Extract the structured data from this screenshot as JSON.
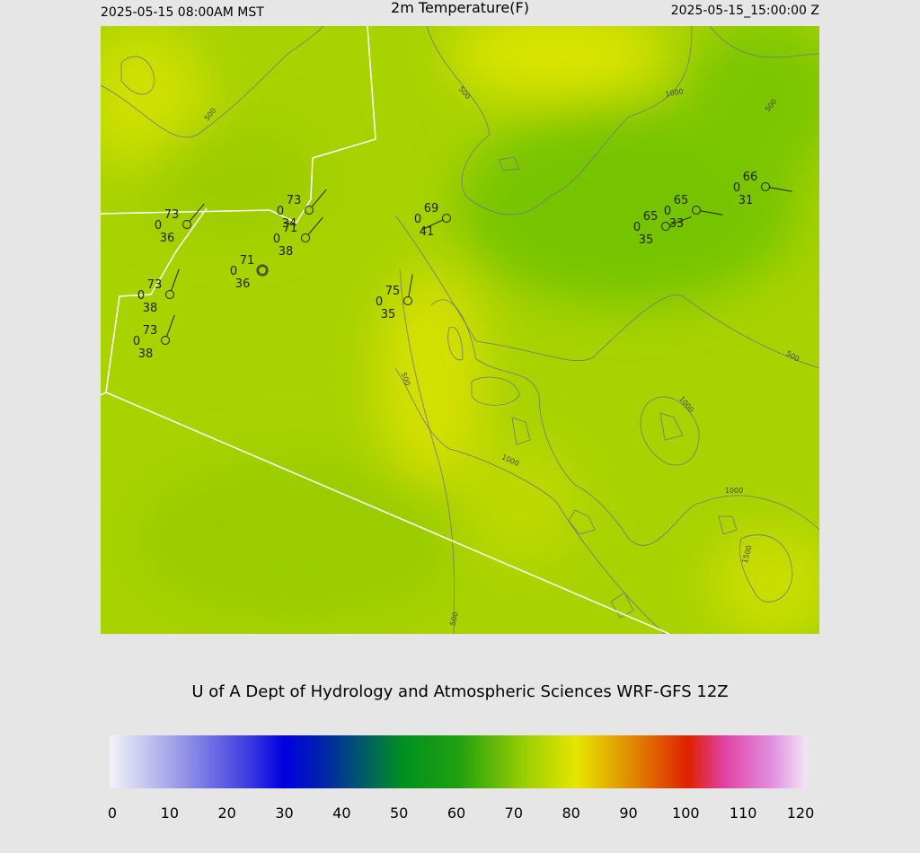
{
  "header": {
    "valid_local": "2025-05-15 08:00AM MST",
    "title": "2m Temperature(F)",
    "valid_utc": "2025-05-15_15:00:00 Z"
  },
  "stations": [
    {
      "temp": 73,
      "wind": 0,
      "dewpoint": 36
    },
    {
      "temp": 73,
      "wind": 0,
      "dewpoint": 34
    },
    {
      "temp": 71,
      "wind": 0,
      "dewpoint": 38
    },
    {
      "temp": 71,
      "wind": 0,
      "dewpoint": 36
    },
    {
      "temp": 73,
      "wind": 0,
      "dewpoint": 38
    },
    {
      "temp": 73,
      "wind": 0,
      "dewpoint": 38
    },
    {
      "temp": 69,
      "wind": 0,
      "dewpoint": 41
    },
    {
      "temp": 75,
      "wind": 0,
      "dewpoint": 35
    },
    {
      "temp": 65,
      "wind": 0,
      "dewpoint": 35
    },
    {
      "temp": 65,
      "wind": 0,
      "dewpoint": 33
    },
    {
      "temp": 66,
      "wind": 0,
      "dewpoint": 31
    }
  ],
  "contour_labels": [
    "500",
    "500",
    "1000",
    "500",
    "500",
    "500",
    "1000",
    "1000",
    "1000",
    "1500",
    "500"
  ],
  "credit": "U of A Dept of Hydrology and Atmospheric Sciences WRF-GFS 12Z",
  "colorbar": {
    "lim": [
      0,
      120
    ],
    "ticks": [
      0,
      10,
      20,
      30,
      40,
      50,
      60,
      70,
      80,
      90,
      100,
      110,
      120
    ]
  }
}
